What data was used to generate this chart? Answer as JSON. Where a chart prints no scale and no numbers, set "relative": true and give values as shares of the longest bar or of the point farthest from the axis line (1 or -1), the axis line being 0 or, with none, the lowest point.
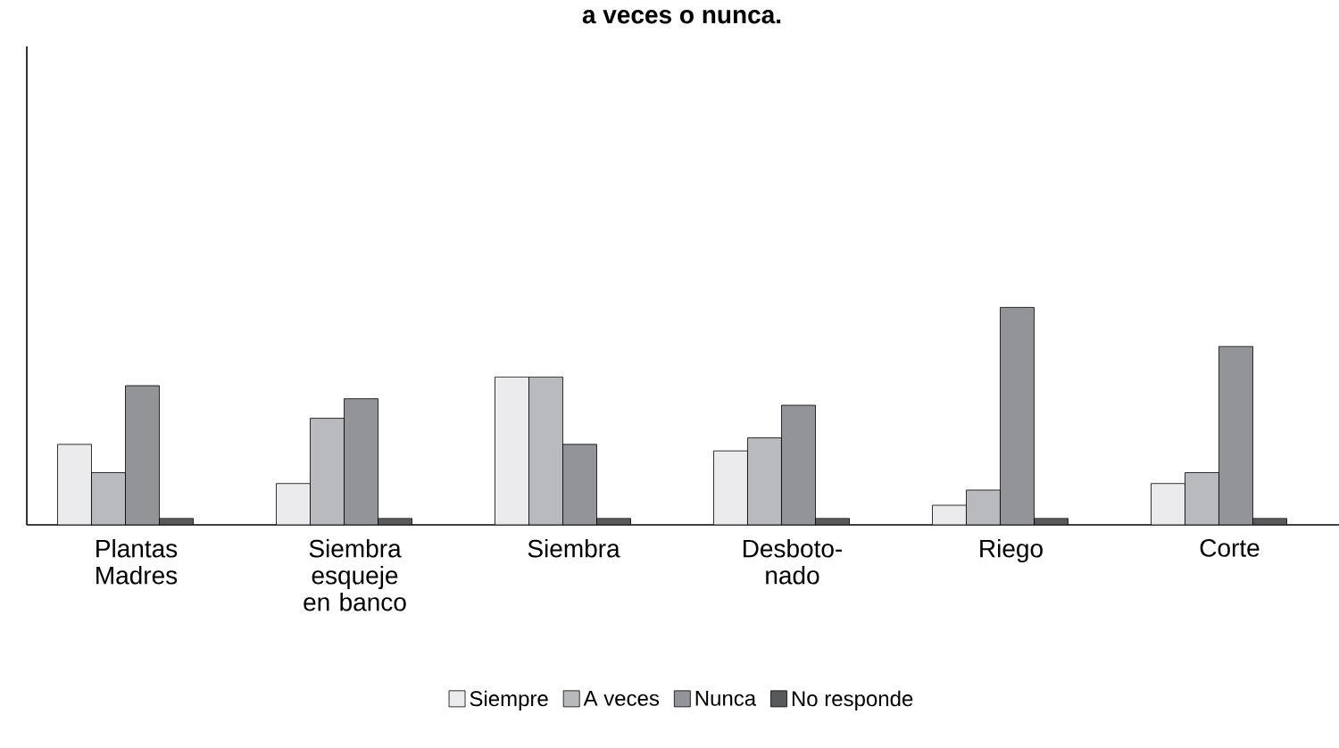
{
  "chart_data": {
    "type": "bar",
    "title": "a veces o nunca.",
    "relative": true,
    "categories": [
      "Plantas Madres",
      "Siembra esqueje en banco",
      "Siembra",
      "Desboto-nado",
      "Riego",
      "Corte"
    ],
    "series": [
      {
        "name": "Siempre",
        "color": "#ebebed",
        "values": [
          0.37,
          0.19,
          0.68,
          0.34,
          0.09,
          0.19
        ]
      },
      {
        "name": "A veces",
        "color": "#b9babd",
        "values": [
          0.24,
          0.49,
          0.68,
          0.4,
          0.16,
          0.24
        ]
      },
      {
        "name": "Nunca",
        "color": "#939497",
        "values": [
          0.64,
          0.58,
          0.37,
          0.55,
          1,
          0.82
        ]
      },
      {
        "name": "No responde",
        "color": "#58595b",
        "values": [
          0.03,
          0.03,
          0.03,
          0.03,
          0.03,
          0.03
        ]
      }
    ],
    "legend": "bottom"
  }
}
